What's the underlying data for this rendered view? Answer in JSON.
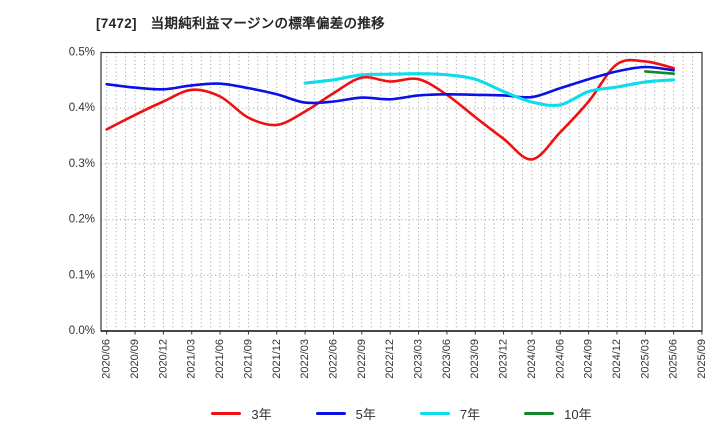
{
  "chart_data": {
    "type": "line",
    "title": "[7472]　当期純利益マージンの標準偏差の推移",
    "ticker": "7472",
    "xlabel": "",
    "ylabel": "",
    "y_unit": "%",
    "ylim": [
      0.0,
      0.5
    ],
    "y_ticks": [
      "0.0%",
      "0.1%",
      "0.2%",
      "0.3%",
      "0.4%",
      "0.5%"
    ],
    "grid": "on",
    "grid_style": {
      "vertical": "monthly dotted",
      "horizontal": "every 0.1% dotted"
    },
    "legend_position": "bottom",
    "x_categories": [
      "2020/06",
      "2020/09",
      "2020/12",
      "2021/03",
      "2021/06",
      "2021/09",
      "2021/12",
      "2022/03",
      "2022/06",
      "2022/09",
      "2022/12",
      "2023/03",
      "2023/06",
      "2023/09",
      "2023/12",
      "2024/03",
      "2024/06",
      "2024/09",
      "2024/12",
      "2025/03",
      "2025/06",
      "2025/09"
    ],
    "series": [
      {
        "name": "3年",
        "color": "#ee1111",
        "start_index": 0,
        "values": [
          0.362,
          0.388,
          0.412,
          0.433,
          0.421,
          0.383,
          0.37,
          0.394,
          0.427,
          0.455,
          0.448,
          0.452,
          0.424,
          0.384,
          0.345,
          0.308,
          0.357,
          0.412,
          0.479,
          0.484,
          0.472
        ]
      },
      {
        "name": "5年",
        "color": "#0a10e6",
        "start_index": 0,
        "values": [
          0.443,
          0.437,
          0.434,
          0.441,
          0.444,
          0.436,
          0.425,
          0.41,
          0.412,
          0.419,
          0.416,
          0.423,
          0.425,
          0.424,
          0.423,
          0.42,
          0.436,
          0.452,
          0.466,
          0.474,
          0.468
        ]
      },
      {
        "name": "7年",
        "color": "#0cdcec",
        "start_index": 7,
        "values": [
          0.445,
          0.451,
          0.46,
          0.461,
          0.462,
          0.46,
          0.452,
          0.43,
          0.411,
          0.406,
          0.43,
          0.438,
          0.447,
          0.451
        ]
      },
      {
        "name": "10年",
        "color": "#108a28",
        "start_index": 19,
        "values": [
          0.466,
          0.462
        ]
      }
    ],
    "colors": {
      "border": "#333333",
      "gridline": "#a8a8a8",
      "tick_text": "#333333",
      "title_text": "#262626"
    }
  }
}
